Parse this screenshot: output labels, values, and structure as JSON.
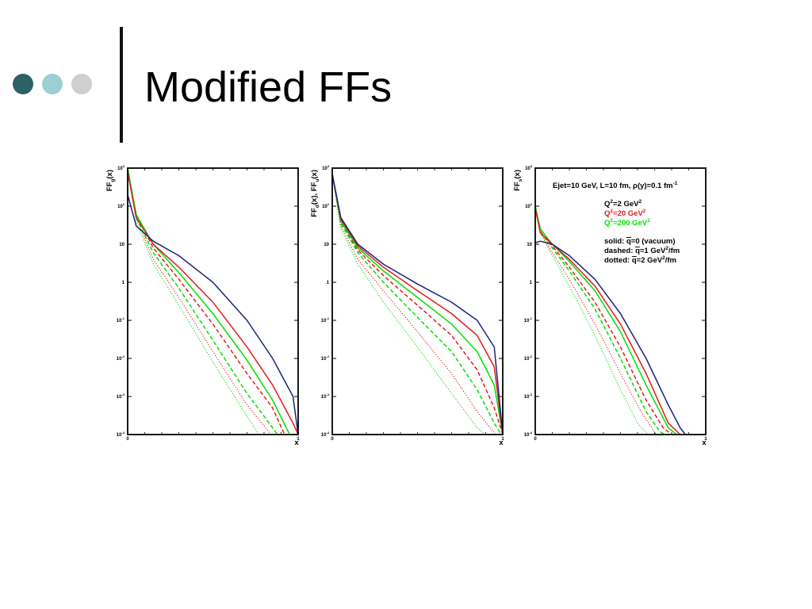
{
  "slide": {
    "title": "Modified FFs",
    "accent_colors": [
      "#2e6068",
      "#9ccfd2",
      "#cfcfcf"
    ]
  },
  "chart_data": [
    {
      "type": "line",
      "ylabel_main": "FF",
      "ylabel_sub": "g",
      "ylabel_tail": "(x)",
      "xlabel": "x",
      "x_ticks": [
        "0",
        "1"
      ],
      "y_log": true,
      "xlim": [
        0,
        1
      ],
      "ylim": [
        0.0001,
        1000
      ],
      "y_ticks": [
        {
          "b": "10",
          "e": "3"
        },
        {
          "b": "10",
          "e": "2"
        },
        {
          "b": "10",
          "e": ""
        },
        {
          "b": "1",
          "e": ""
        },
        {
          "b": "10",
          "e": "-1"
        },
        {
          "b": "10",
          "e": "-2"
        },
        {
          "b": "10",
          "e": "-3"
        },
        {
          "b": "10",
          "e": "-4"
        }
      ],
      "series": [
        {
          "color": "#1a237e",
          "style": "solid",
          "x": [
            0,
            0.05,
            0.15,
            0.3,
            0.5,
            0.7,
            0.85,
            0.97,
            1.0
          ],
          "y": [
            200,
            30,
            12,
            5,
            1,
            0.1,
            0.01,
            0.001,
            0.0001
          ]
        },
        {
          "color": "#e31a1c",
          "style": "solid",
          "x": [
            0,
            0.05,
            0.15,
            0.3,
            0.5,
            0.7,
            0.85,
            0.97,
            1.0
          ],
          "y": [
            800,
            50,
            10,
            2.5,
            0.3,
            0.02,
            0.002,
            0.0002,
            0.0001
          ]
        },
        {
          "color": "#00e000",
          "style": "solid",
          "x": [
            0,
            0.05,
            0.15,
            0.3,
            0.5,
            0.7,
            0.85,
            0.95,
            1.0
          ],
          "y": [
            1000,
            60,
            10,
            1.8,
            0.15,
            0.009,
            0.0008,
            0.0001,
            0.0001
          ]
        },
        {
          "color": "#e31a1c",
          "style": "dashed",
          "x": [
            0,
            0.05,
            0.15,
            0.3,
            0.5,
            0.7,
            0.85,
            0.92
          ],
          "y": [
            800,
            60,
            8,
            1.2,
            0.08,
            0.004,
            0.0005,
            0.0001
          ]
        },
        {
          "color": "#00e000",
          "style": "dashed",
          "x": [
            0,
            0.05,
            0.15,
            0.3,
            0.5,
            0.7,
            0.85,
            0.88
          ],
          "y": [
            1000,
            50,
            6,
            0.7,
            0.03,
            0.0012,
            0.00015,
            0.0001
          ]
        },
        {
          "color": "#e31a1c",
          "style": "dotted",
          "x": [
            0,
            0.05,
            0.15,
            0.3,
            0.5,
            0.7,
            0.84
          ],
          "y": [
            800,
            50,
            4,
            0.4,
            0.015,
            0.0006,
            0.0001
          ]
        },
        {
          "color": "#00e000",
          "style": "dotted",
          "x": [
            0,
            0.05,
            0.15,
            0.3,
            0.5,
            0.7,
            0.77
          ],
          "y": [
            1000,
            40,
            3,
            0.25,
            0.008,
            0.0003,
            0.0001
          ]
        }
      ]
    },
    {
      "type": "line",
      "ylabel_main": "FF",
      "ylabel_sub": "d",
      "ylabel_tail": "(x), FF",
      "ylabel_sub2": "u",
      "ylabel_tail2": "(x)",
      "xlabel": "x",
      "x_ticks": [
        "0",
        "1"
      ],
      "y_log": true,
      "xlim": [
        0,
        1
      ],
      "ylim": [
        0.0001,
        1000
      ],
      "y_ticks": [
        {
          "b": "10",
          "e": "3"
        },
        {
          "b": "10",
          "e": "2"
        },
        {
          "b": "10",
          "e": ""
        },
        {
          "b": "1",
          "e": ""
        },
        {
          "b": "10",
          "e": "-1"
        },
        {
          "b": "10",
          "e": "-2"
        },
        {
          "b": "10",
          "e": "-3"
        },
        {
          "b": "10",
          "e": "-4"
        }
      ],
      "series": [
        {
          "color": "#1a237e",
          "style": "solid",
          "x": [
            0,
            0.05,
            0.15,
            0.3,
            0.5,
            0.7,
            0.85,
            0.95,
            1.0
          ],
          "y": [
            700,
            50,
            10,
            3,
            0.9,
            0.3,
            0.1,
            0.02,
            0.0001
          ]
        },
        {
          "color": "#e31a1c",
          "style": "solid",
          "x": [
            0,
            0.05,
            0.15,
            0.3,
            0.5,
            0.7,
            0.85,
            0.95,
            1.0
          ],
          "y": [
            700,
            45,
            9,
            2.5,
            0.6,
            0.15,
            0.04,
            0.006,
            0.0001
          ]
        },
        {
          "color": "#00e000",
          "style": "solid",
          "x": [
            0,
            0.05,
            0.15,
            0.3,
            0.5,
            0.7,
            0.85,
            0.95,
            1.0
          ],
          "y": [
            700,
            40,
            8,
            2,
            0.4,
            0.08,
            0.015,
            0.002,
            0.0001
          ]
        },
        {
          "color": "#e31a1c",
          "style": "dashed",
          "x": [
            0,
            0.05,
            0.15,
            0.3,
            0.5,
            0.7,
            0.85,
            0.95,
            1.0
          ],
          "y": [
            700,
            40,
            7,
            1.5,
            0.25,
            0.04,
            0.005,
            0.0005,
            0.0001
          ]
        },
        {
          "color": "#00e000",
          "style": "dashed",
          "x": [
            0,
            0.05,
            0.15,
            0.3,
            0.5,
            0.7,
            0.85,
            0.95,
            0.99
          ],
          "y": [
            700,
            35,
            6,
            1,
            0.12,
            0.015,
            0.0015,
            0.0002,
            0.0001
          ]
        },
        {
          "color": "#e31a1c",
          "style": "dotted",
          "x": [
            0,
            0.05,
            0.15,
            0.3,
            0.5,
            0.7,
            0.85,
            0.96
          ],
          "y": [
            700,
            30,
            4,
            0.6,
            0.05,
            0.004,
            0.0004,
            0.0001
          ]
        },
        {
          "color": "#00e000",
          "style": "dotted",
          "x": [
            0,
            0.05,
            0.15,
            0.3,
            0.5,
            0.7,
            0.85,
            0.9
          ],
          "y": [
            700,
            25,
            3,
            0.3,
            0.02,
            0.0012,
            0.00015,
            0.0001
          ]
        }
      ]
    },
    {
      "type": "line",
      "ylabel_main": "FF",
      "ylabel_sub": "s",
      "ylabel_tail": "(x)",
      "xlabel": "x",
      "x_ticks": [
        "0",
        "1"
      ],
      "y_log": true,
      "xlim": [
        0,
        1
      ],
      "ylim": [
        0.0001,
        1000
      ],
      "y_ticks": [
        {
          "b": "10",
          "e": "3"
        },
        {
          "b": "10",
          "e": "2"
        },
        {
          "b": "10",
          "e": ""
        },
        {
          "b": "1",
          "e": ""
        },
        {
          "b": "10",
          "e": "-1"
        },
        {
          "b": "10",
          "e": "-2"
        },
        {
          "b": "10",
          "e": "-3"
        },
        {
          "b": "10",
          "e": "-4"
        }
      ],
      "annotation": {
        "line1": {
          "t1": "Ejet=10 GeV, L=10 fm, ",
          "rho": "ρ",
          "t2": "(y)=0.1 fm",
          "sup": "-1"
        },
        "legend": [
          {
            "prefix": "Q",
            "sup": "2",
            "mid": "=2 GeV",
            "sup2": "2",
            "color": "#000000"
          },
          {
            "prefix": "Q",
            "sup": "2",
            "mid": "=20 GeV",
            "sup2": "2",
            "color": "#e31a1c"
          },
          {
            "prefix": "Q",
            "sup": "2",
            "mid": "=200 GeV",
            "sup2": "2",
            "color": "#00e000"
          }
        ],
        "styles": [
          {
            "lead": "solid:  ",
            "q": "q",
            "rest": "=0 (vacuum)",
            "sup": "",
            "tail": ""
          },
          {
            "lead": "dashed: ",
            "q": "q",
            "rest": "=1 GeV",
            "sup": "2",
            "tail": "/fm"
          },
          {
            "lead": "dotted: ",
            "q": "q",
            "rest": "=2 GeV",
            "sup": "2",
            "tail": "/fm"
          }
        ]
      },
      "series": [
        {
          "color": "#1a237e",
          "style": "solid",
          "x": [
            0,
            0.03,
            0.1,
            0.2,
            0.35,
            0.5,
            0.65,
            0.78,
            0.85,
            0.88
          ],
          "y": [
            11,
            12,
            10,
            5,
            1.2,
            0.15,
            0.01,
            0.0006,
            0.00015,
            0.0001
          ]
        },
        {
          "color": "#e31a1c",
          "style": "solid",
          "x": [
            0,
            0.03,
            0.1,
            0.2,
            0.35,
            0.5,
            0.65,
            0.78,
            0.85
          ],
          "y": [
            90,
            20,
            10,
            4,
            0.8,
            0.08,
            0.004,
            0.0002,
            0.0001
          ]
        },
        {
          "color": "#00e000",
          "style": "solid",
          "x": [
            0,
            0.03,
            0.1,
            0.2,
            0.35,
            0.5,
            0.65,
            0.78,
            0.83
          ],
          "y": [
            100,
            25,
            10,
            3.5,
            0.6,
            0.05,
            0.002,
            0.00015,
            0.0001
          ]
        },
        {
          "color": "#e31a1c",
          "style": "dashed",
          "x": [
            0,
            0.03,
            0.1,
            0.2,
            0.35,
            0.5,
            0.65,
            0.75,
            0.8
          ],
          "y": [
            90,
            20,
            9,
            2.5,
            0.3,
            0.02,
            0.0008,
            0.00015,
            0.0001
          ]
        },
        {
          "color": "#00e000",
          "style": "dashed",
          "x": [
            0,
            0.03,
            0.1,
            0.2,
            0.35,
            0.5,
            0.65,
            0.73,
            0.76
          ],
          "y": [
            100,
            22,
            8,
            2,
            0.2,
            0.01,
            0.0004,
            0.00012,
            0.0001
          ]
        },
        {
          "color": "#e31a1c",
          "style": "dotted",
          "x": [
            0,
            0.03,
            0.1,
            0.2,
            0.35,
            0.5,
            0.62,
            0.71
          ],
          "y": [
            90,
            20,
            6,
            1.2,
            0.08,
            0.004,
            0.0004,
            0.0001
          ]
        },
        {
          "color": "#00e000",
          "style": "dotted",
          "x": [
            0,
            0.03,
            0.1,
            0.2,
            0.35,
            0.5,
            0.6,
            0.66
          ],
          "y": [
            100,
            20,
            5,
            0.8,
            0.04,
            0.0015,
            0.0002,
            0.0001
          ]
        }
      ]
    }
  ]
}
